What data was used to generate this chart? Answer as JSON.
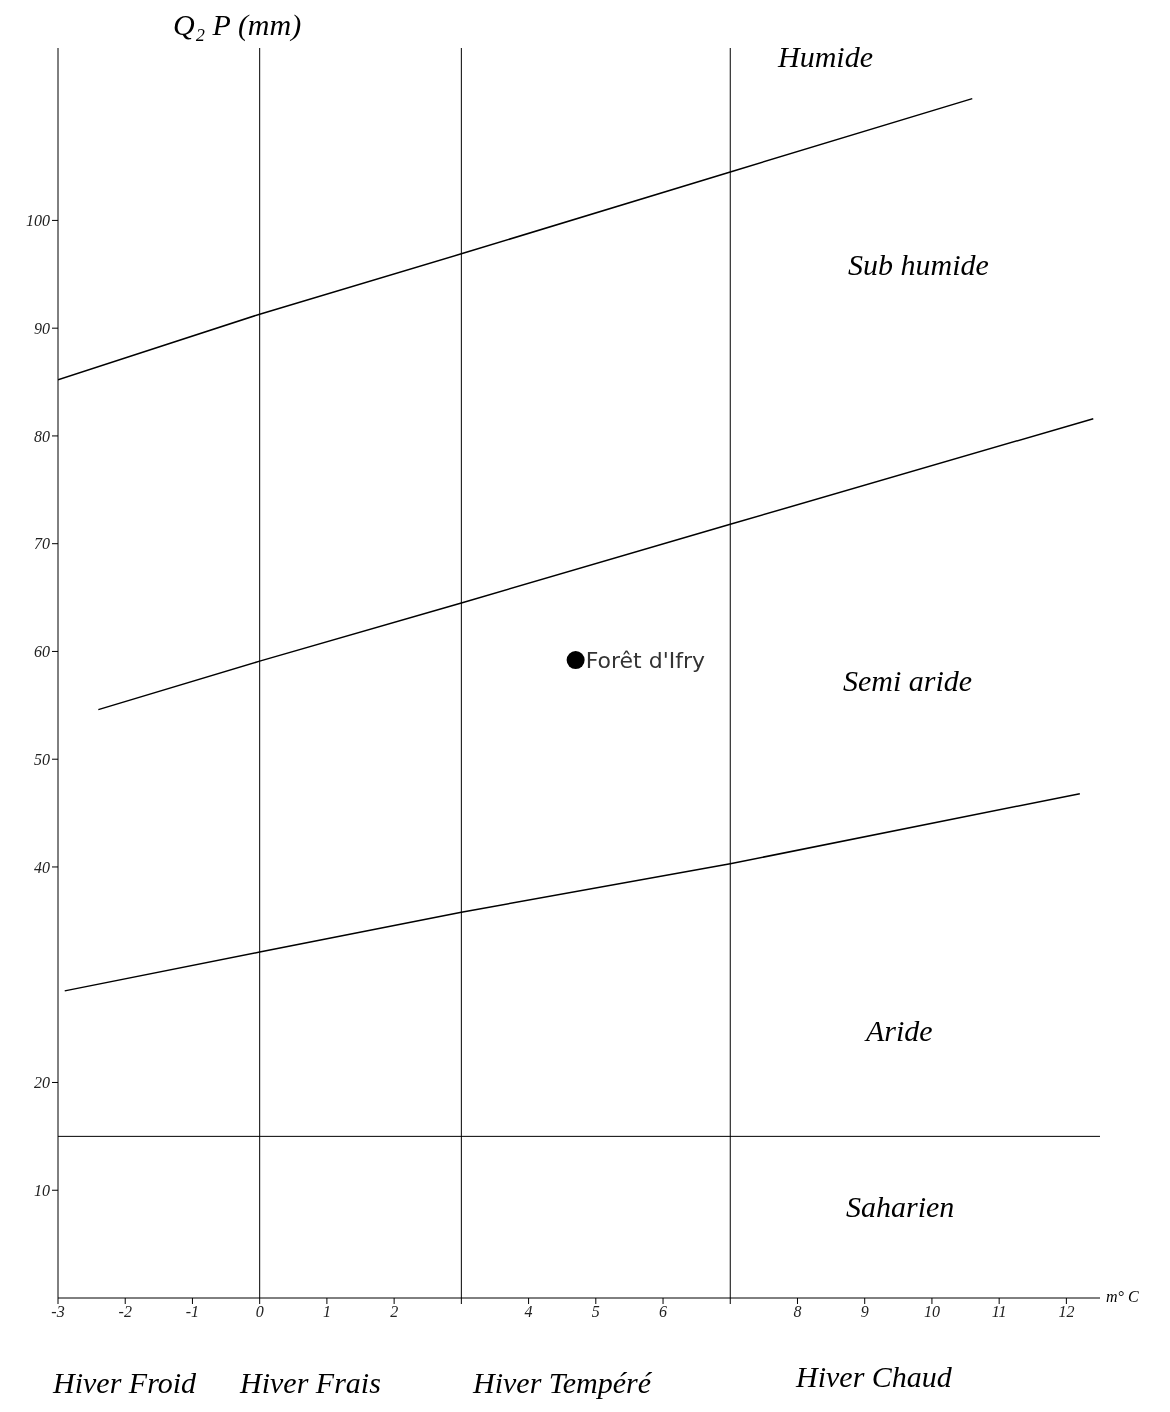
{
  "chart_data": {
    "type": "line",
    "xlabel": "m° C",
    "ylabel": "Q₂ P (mm)",
    "xlim": [
      -3,
      12.5
    ],
    "ylim": [
      0,
      116
    ],
    "xticks": [
      -3,
      -2,
      -1,
      0,
      1,
      2,
      {
        "value": 3,
        "label": null
      },
      4,
      5,
      6,
      {
        "value": 7,
        "label": null
      },
      8,
      9,
      10,
      11,
      12
    ],
    "yticks": [
      10,
      20,
      40,
      50,
      60,
      70,
      80,
      90,
      100
    ],
    "grid": false,
    "legend": false,
    "series": [
      {
        "color": "#000000",
        "marker": "none",
        "x": [
          -3,
          0,
          3,
          7,
          10.6
        ],
        "values": [
          85.2,
          91.3,
          96.9,
          104.5,
          111.3
        ]
      },
      {
        "color": "#000000",
        "marker": "none",
        "x": [
          -2.4,
          0,
          3,
          7,
          12.4
        ],
        "values": [
          54.6,
          59.1,
          64.5,
          71.8,
          81.6
        ]
      },
      {
        "color": "#000000",
        "marker": "none",
        "x": [
          -2.9,
          0,
          3,
          7,
          12.2
        ],
        "values": [
          28.5,
          32.1,
          35.8,
          40.3,
          46.8
        ]
      },
      {
        "type": "scatter",
        "color": "#000000",
        "marker": "circle",
        "x": [
          4.7
        ],
        "values": [
          59.2
        ]
      }
    ],
    "ref_lines": [
      {
        "axis": "x",
        "value": 0,
        "color": "#000000"
      },
      {
        "axis": "x",
        "value": 3,
        "color": "#000000"
      },
      {
        "axis": "x",
        "value": 7,
        "color": "#000000"
      },
      {
        "axis": "y",
        "value": 15,
        "color": "#000000"
      }
    ],
    "annotations": [
      {
        "text": "Forêt d'Ifry",
        "x": 4.7,
        "y": 59.2
      },
      "Humide",
      "Sub humide",
      "Semi aride",
      "Aride",
      "Saharien",
      "Hiver Froid",
      "Hiver Frais",
      "Hiver Tempéré",
      "Hiver Chaud"
    ]
  }
}
